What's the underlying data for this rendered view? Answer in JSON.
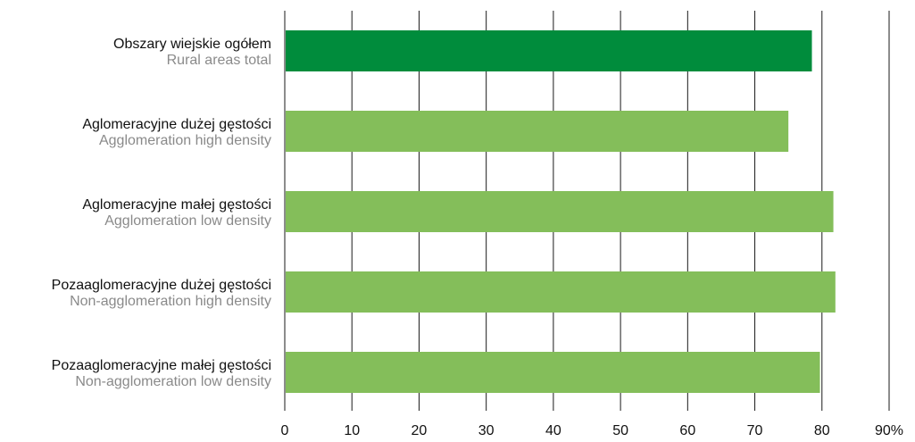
{
  "chart_data": {
    "type": "bar",
    "orientation": "horizontal",
    "categories": [
      {
        "pl": "Obszary wiejskie ogółem",
        "en": "Rural areas total"
      },
      {
        "pl": "Aglomeracyjne dużej gęstości",
        "en": "Agglomeration high density"
      },
      {
        "pl": "Aglomeracyjne małej gęstości",
        "en": "Agglomeration low density"
      },
      {
        "pl": "Pozaaglomeracyjne dużej gęstości",
        "en": "Non-agglomeration high density"
      },
      {
        "pl": "Pozaaglomeracyjne małej gęstości",
        "en": "Non-agglomeration low density"
      }
    ],
    "values": [
      78.5,
      75.0,
      81.7,
      82.0,
      79.7
    ],
    "xlim": [
      0,
      90
    ],
    "xticks": [
      "0",
      "10",
      "20",
      "30",
      "40",
      "50",
      "60",
      "70",
      "80",
      "90%"
    ],
    "grid": true,
    "colors": {
      "highlight": "#008c3c",
      "bar": "#84be5a",
      "grid": "#1a1a1a"
    },
    "bar_highlight": [
      true,
      false,
      false,
      false,
      false
    ]
  }
}
